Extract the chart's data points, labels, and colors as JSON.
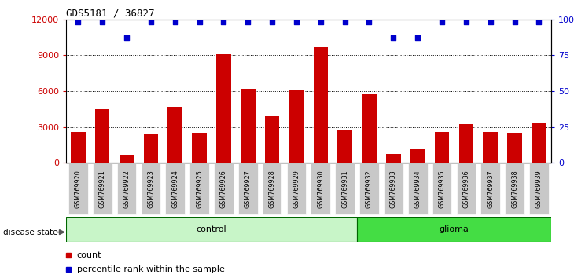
{
  "title": "GDS5181 / 36827",
  "samples": [
    "GSM769920",
    "GSM769921",
    "GSM769922",
    "GSM769923",
    "GSM769924",
    "GSM769925",
    "GSM769926",
    "GSM769927",
    "GSM769928",
    "GSM769929",
    "GSM769930",
    "GSM769931",
    "GSM769932",
    "GSM769933",
    "GSM769934",
    "GSM769935",
    "GSM769936",
    "GSM769937",
    "GSM769938",
    "GSM769939"
  ],
  "counts": [
    2600,
    4500,
    600,
    2400,
    4700,
    2500,
    9100,
    6200,
    3900,
    6100,
    9700,
    2800,
    5700,
    700,
    1100,
    2600,
    3200,
    2600,
    2500,
    3300
  ],
  "percentile_ranks": [
    99,
    99,
    90,
    99,
    99,
    99,
    99,
    99,
    99,
    99,
    99,
    99,
    99,
    90,
    90,
    99,
    99,
    99,
    99,
    99
  ],
  "n_control": 12,
  "n_glioma": 8,
  "bar_color": "#cc0000",
  "dot_color": "#0000cc",
  "ylim_left": [
    0,
    12000
  ],
  "ylim_right": [
    0,
    100
  ],
  "yticks_left": [
    0,
    3000,
    6000,
    9000,
    12000
  ],
  "yticks_right": [
    0,
    25,
    50,
    75,
    100
  ],
  "plot_bg_color": "#ffffff",
  "xticklabel_bg": "#c8c8c8",
  "control_color": "#c8f5c8",
  "glioma_color": "#44dd44",
  "control_edge": "#006600",
  "glioma_edge": "#006600"
}
